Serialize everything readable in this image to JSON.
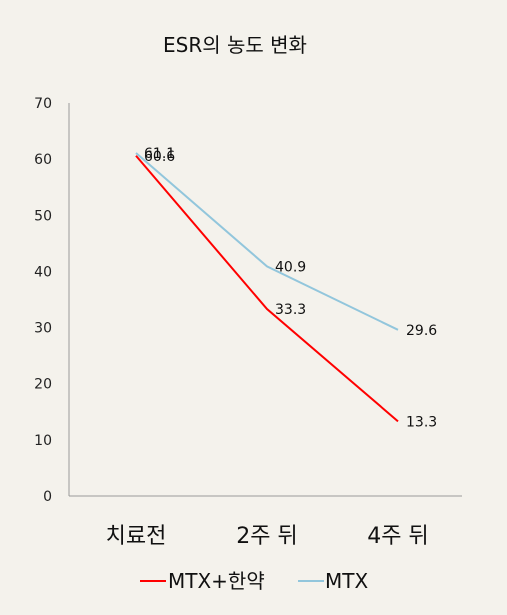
{
  "chart_data": {
    "type": "line",
    "title": "ESR의 농도 변화",
    "categories": [
      "치료전",
      "2주 뒤",
      "4주 뒤"
    ],
    "ylim": [
      0,
      70
    ],
    "y_ticks": [
      0,
      10,
      20,
      30,
      40,
      50,
      60,
      70
    ],
    "grid": false,
    "legend_position": "bottom",
    "series": [
      {
        "name": "MTX+한약",
        "values": [
          60.6,
          33.3,
          13.3
        ],
        "color": "#ff0000"
      },
      {
        "name": "MTX",
        "values": [
          61.1,
          40.9,
          29.6
        ],
        "color": "#92c6dc"
      }
    ]
  }
}
